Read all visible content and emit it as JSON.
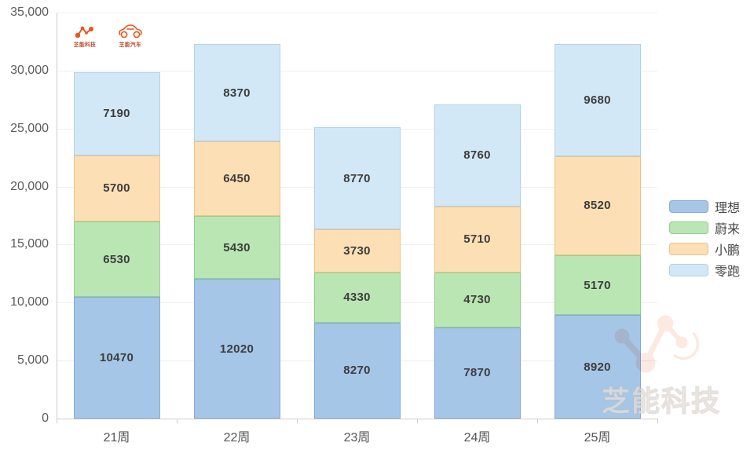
{
  "brand": {
    "logo_tech_label": "芝能科技",
    "logo_auto_label": "芝能汽车",
    "accent_color": "#E8551E"
  },
  "watermark": {
    "text": "芝能科技"
  },
  "chart_data": {
    "type": "bar",
    "stacked": true,
    "title": "",
    "xlabel": "",
    "ylabel": "",
    "categories": [
      "21周",
      "22周",
      "23周",
      "24周",
      "25周"
    ],
    "series": [
      {
        "name": "理想",
        "color": "#A5C6E7",
        "border_color": "#86AAD2",
        "values": [
          10470,
          12020,
          8270,
          7870,
          8920
        ]
      },
      {
        "name": "蔚来",
        "color": "#B9E6B2",
        "border_color": "#95CF8E",
        "values": [
          6530,
          5430,
          4330,
          4730,
          5170
        ]
      },
      {
        "name": "小鹏",
        "color": "#FCDFB4",
        "border_color": "#EBC48B",
        "values": [
          5700,
          6450,
          3730,
          5710,
          8520
        ]
      },
      {
        "name": "零跑",
        "color": "#D3E8F6",
        "border_color": "#B0D3E9",
        "values": [
          7190,
          8370,
          8770,
          8760,
          9680
        ]
      }
    ],
    "totals": [
      29890,
      32270,
      25100,
      27070,
      32290
    ],
    "ylim": [
      0,
      35000
    ],
    "ytick_step": 5000,
    "ytick_labels": [
      "0",
      "5,000",
      "10,000",
      "15,000",
      "20,000",
      "25,000",
      "30,000",
      "35,000"
    ],
    "grid": true,
    "value_labels": true,
    "legend_position": "right",
    "legend_items": [
      "理想",
      "蔚来",
      "小鹏",
      "零跑"
    ]
  }
}
